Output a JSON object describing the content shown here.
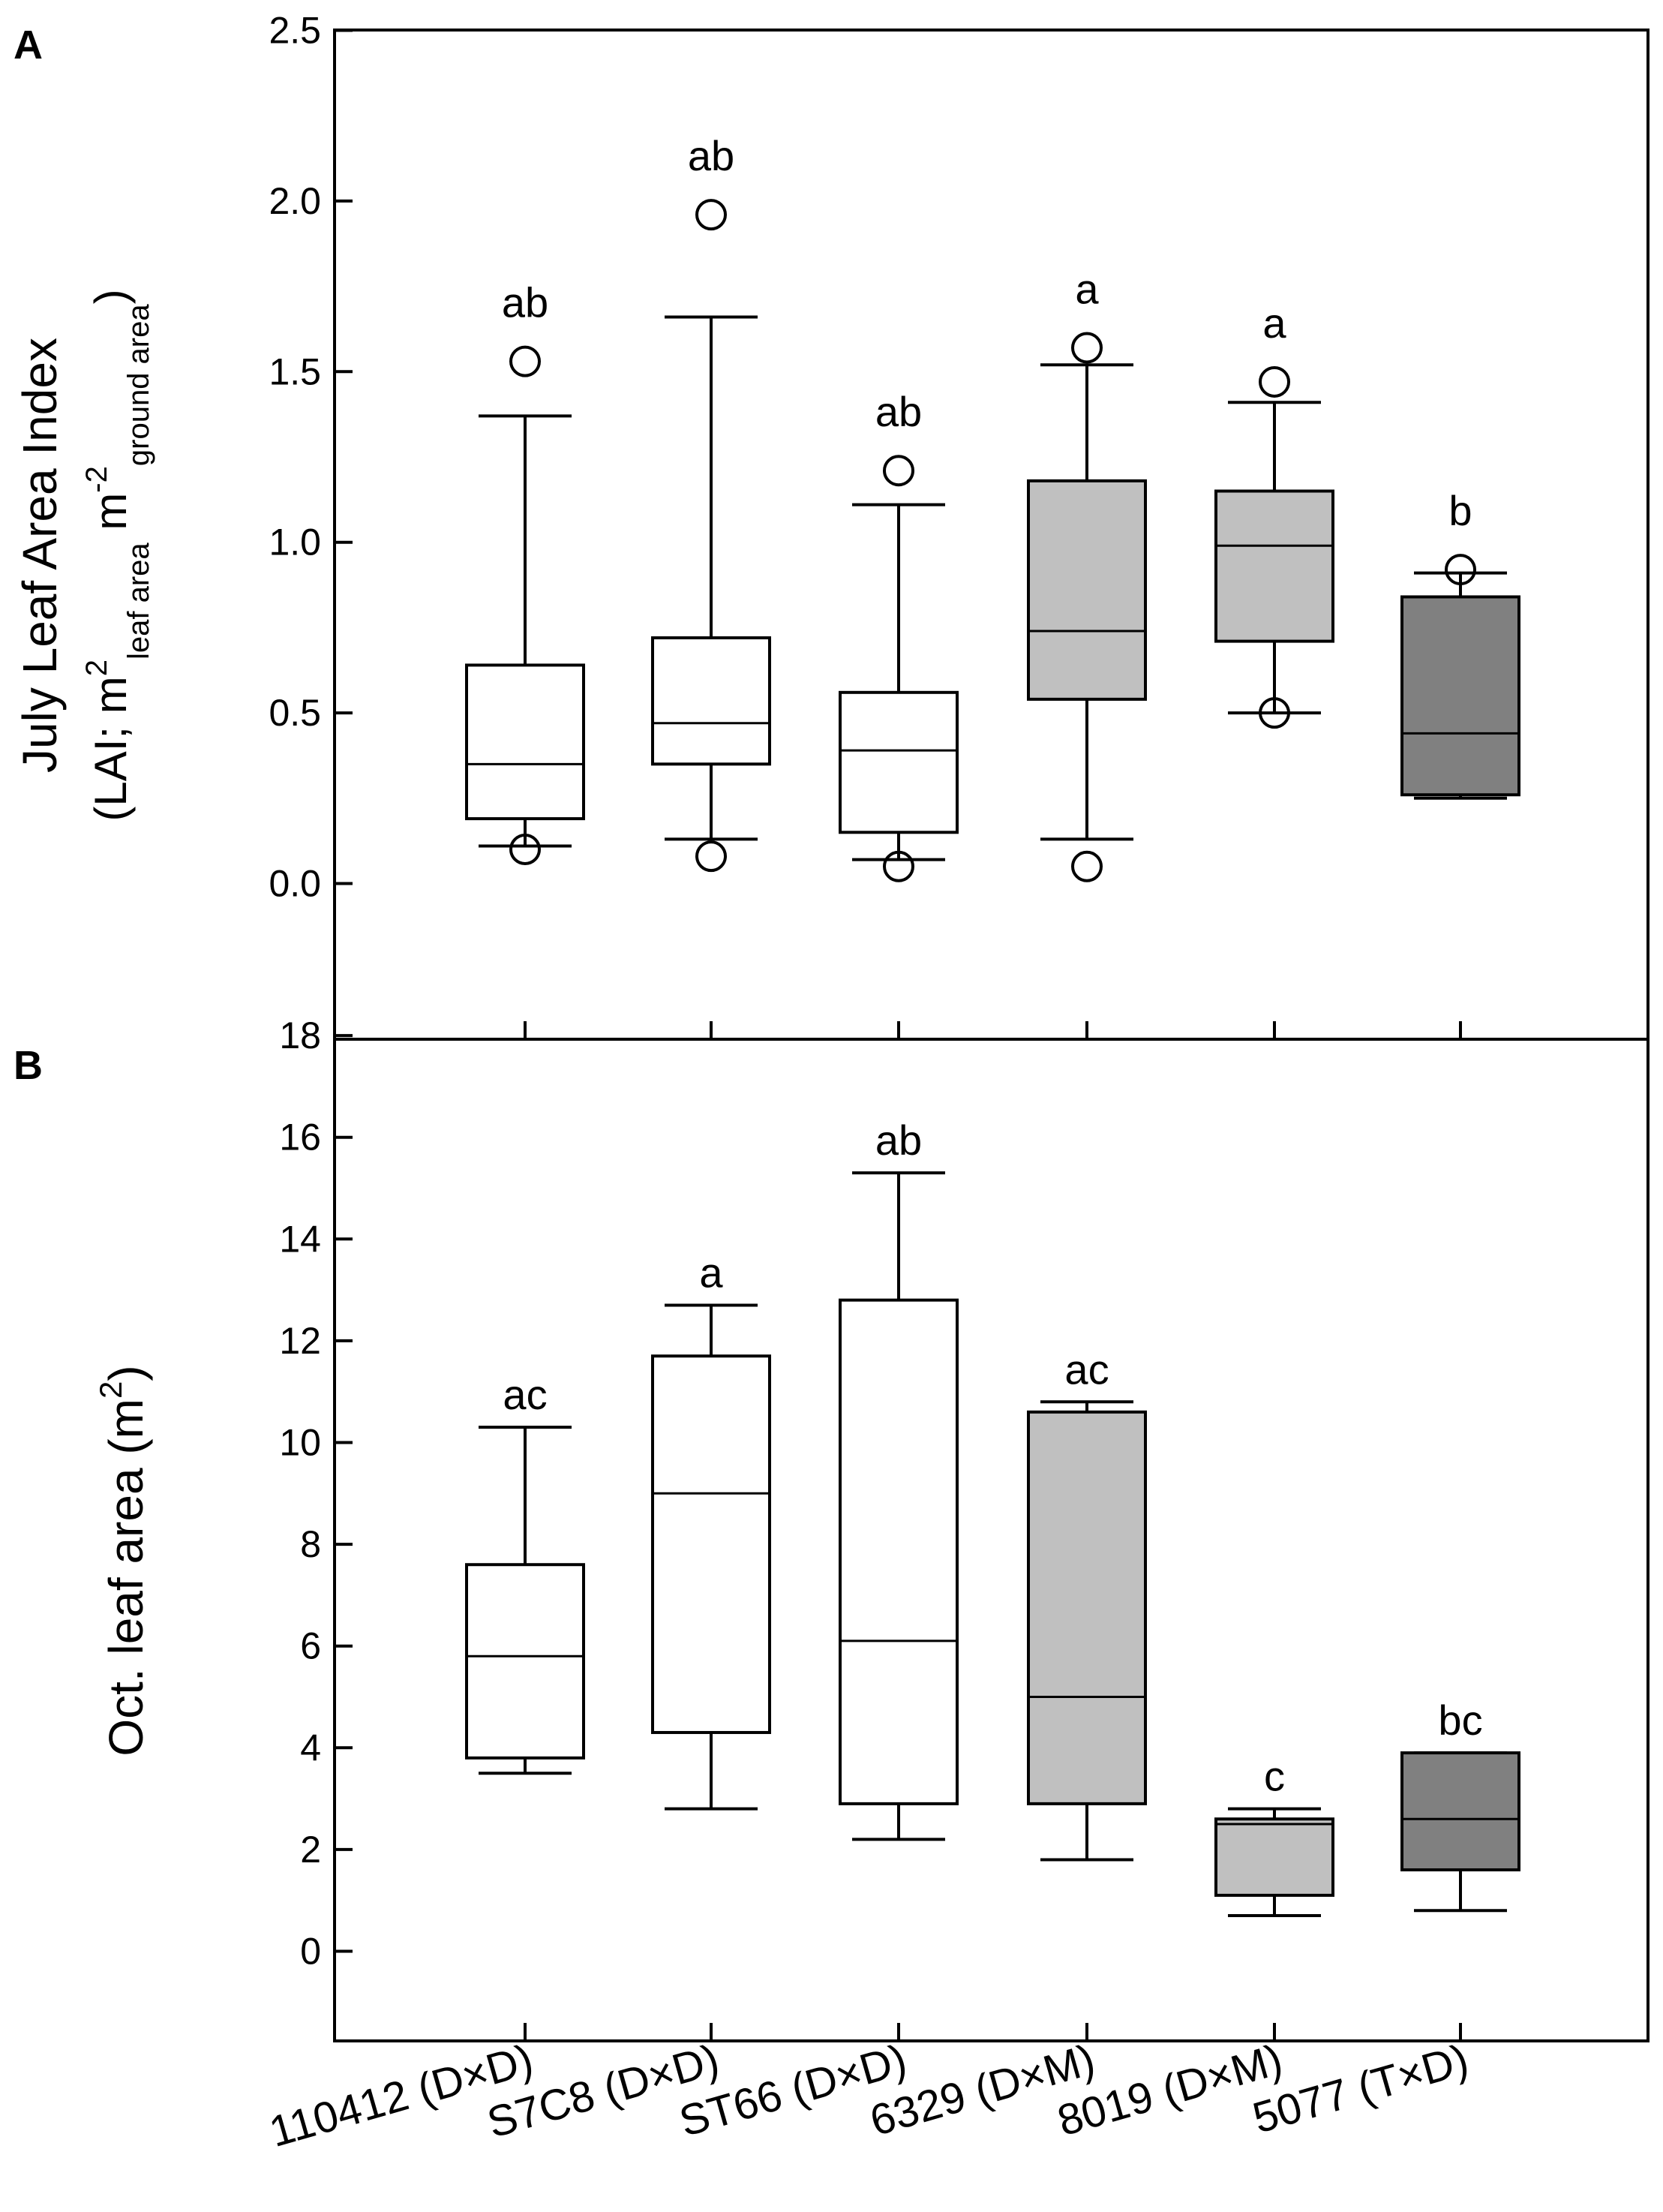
{
  "colors": {
    "white": "#ffffff",
    "light_gray": "#c0c0c0",
    "dark_gray": "#808080",
    "line": "#000000"
  },
  "x_categories": [
    "110412 (D×D)",
    "S7C8 (D×D)",
    "ST66 (D×D)",
    "6329 (D×M)",
    "8019 (D×M)",
    "5077 (T×D)"
  ],
  "chart_data": [
    {
      "panel": "A",
      "type": "box",
      "ylabel_line1": "July Leaf Area Index",
      "ylabel_line2": {
        "pre": "(LAI; m",
        "sup1": "2",
        "sub1": "leaf area",
        "mid": " m",
        "sup2": "-2",
        "sub2": "ground area",
        "post": ")"
      },
      "ylim": [
        -0.45,
        2.5
      ],
      "yticks": [
        0.0,
        0.5,
        1.0,
        1.5,
        2.0,
        2.5
      ],
      "ytick_labels": [
        "0.0",
        "0.5",
        "1.0",
        "1.5",
        "2.0",
        "2.5"
      ],
      "boxes": [
        {
          "category": "110412 (D×D)",
          "whisker_low": 0.11,
          "q1": 0.19,
          "median": 0.35,
          "q3": 0.64,
          "whisker_high": 1.37,
          "outliers": [
            0.1,
            1.53
          ],
          "letter": "ab",
          "fill": "#ffffff"
        },
        {
          "category": "S7C8 (D×D)",
          "whisker_low": 0.13,
          "q1": 0.35,
          "median": 0.47,
          "q3": 0.72,
          "whisker_high": 1.66,
          "outliers": [
            0.08,
            1.96
          ],
          "letter": "ab",
          "fill": "#ffffff"
        },
        {
          "category": "ST66 (D×D)",
          "whisker_low": 0.07,
          "q1": 0.15,
          "median": 0.39,
          "q3": 0.56,
          "whisker_high": 1.11,
          "outliers": [
            0.05,
            1.21
          ],
          "letter": "ab",
          "fill": "#ffffff"
        },
        {
          "category": "6329 (D×M)",
          "whisker_low": 0.13,
          "q1": 0.54,
          "median": 0.74,
          "q3": 1.18,
          "whisker_high": 1.52,
          "outliers": [
            0.05,
            1.57
          ],
          "letter": "a",
          "fill": "#c0c0c0"
        },
        {
          "category": "8019 (D×M)",
          "whisker_low": 0.5,
          "q1": 0.71,
          "median": 0.99,
          "q3": 1.15,
          "whisker_high": 1.41,
          "outliers": [
            0.5,
            1.47
          ],
          "letter": "a",
          "fill": "#c0c0c0"
        },
        {
          "category": "5077 (T×D)",
          "whisker_low": 0.25,
          "q1": 0.26,
          "median": 0.44,
          "q3": 0.84,
          "whisker_high": 0.91,
          "outliers": [
            0.92
          ],
          "letter": "b",
          "fill": "#808080"
        }
      ]
    },
    {
      "panel": "B",
      "type": "box",
      "ylabel": {
        "pre": "Oct. leaf area (m",
        "sup": "2",
        "post": ")"
      },
      "ylim": [
        -2.5,
        18
      ],
      "yticks": [
        0,
        2,
        4,
        6,
        8,
        10,
        12,
        14,
        16,
        18
      ],
      "ytick_labels": [
        "0",
        "2",
        "4",
        "6",
        "8",
        "10",
        "12",
        "14",
        "16",
        "18"
      ],
      "boxes": [
        {
          "category": "110412 (D×D)",
          "whisker_low": 3.5,
          "q1": 3.8,
          "median": 5.8,
          "q3": 7.6,
          "whisker_high": 10.3,
          "outliers": [],
          "letter": "ac",
          "fill": "#ffffff"
        },
        {
          "category": "S7C8 (D×D)",
          "whisker_low": 2.8,
          "q1": 4.3,
          "median": 9.0,
          "q3": 11.7,
          "whisker_high": 12.7,
          "outliers": [],
          "letter": "a",
          "fill": "#ffffff"
        },
        {
          "category": "ST66 (D×D)",
          "whisker_low": 2.2,
          "q1": 2.9,
          "median": 6.1,
          "q3": 12.8,
          "whisker_high": 15.3,
          "outliers": [],
          "letter": "ab",
          "fill": "#ffffff"
        },
        {
          "category": "6329 (D×M)",
          "whisker_low": 1.8,
          "q1": 2.9,
          "median": 5.0,
          "q3": 10.6,
          "whisker_high": 10.8,
          "outliers": [],
          "letter": "ac",
          "fill": "#c0c0c0"
        },
        {
          "category": "8019 (D×M)",
          "whisker_low": 0.7,
          "q1": 1.1,
          "median": 2.5,
          "q3": 2.6,
          "whisker_high": 2.8,
          "outliers": [],
          "letter": "c",
          "fill": "#c0c0c0"
        },
        {
          "category": "5077 (T×D)",
          "whisker_low": 0.8,
          "q1": 1.6,
          "median": 2.6,
          "q3": 3.9,
          "whisker_high": 3.9,
          "outliers": [],
          "letter": "bc",
          "fill": "#808080"
        }
      ]
    }
  ]
}
